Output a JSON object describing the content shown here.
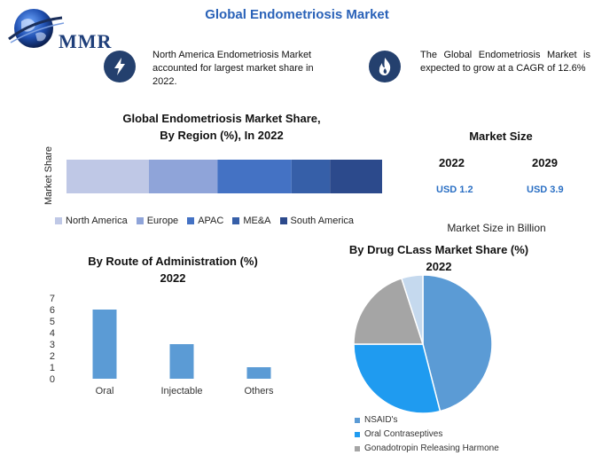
{
  "header": {
    "logo_text": "MMR",
    "title": "Global Endometriosis Market"
  },
  "info": [
    {
      "icon": "lightning-icon",
      "text": "North America Endometriosis Market accounted for largest market share in 2022."
    },
    {
      "icon": "flame-icon",
      "text": "The Global Endometriosis Market is expected to grow at a CAGR of 12.6%"
    }
  ],
  "market_size": {
    "title": "Market Size",
    "years": [
      "2022",
      "2029"
    ],
    "values": [
      "USD 1.2",
      "USD 3.9"
    ],
    "note": "Market Size in Billion"
  },
  "colors": {
    "title_blue": "#2a62b8",
    "icon_navy": "#24406e",
    "value_blue": "#2a6fc4"
  },
  "chart_data": [
    {
      "type": "bar",
      "orientation": "horizontal-stacked",
      "title_line1": "Global Endometriosis Market Share,",
      "title_line2": "By Region (%), In 2022",
      "ylabel": "Market Share",
      "series": [
        {
          "name": "North America",
          "value": 30,
          "color": "#bfc8e6"
        },
        {
          "name": "Europe",
          "value": 25,
          "color": "#8fa4d9"
        },
        {
          "name": "APAC",
          "value": 27,
          "color": "#4472c4"
        },
        {
          "name": "ME&A",
          "value": 14,
          "color": "#365fa8"
        },
        {
          "name": "South America",
          "value": 19,
          "color": "#2c4a8c"
        }
      ],
      "legend_position": "bottom"
    },
    {
      "type": "bar",
      "title_line1": "By Route of Administration (%)",
      "title_line2": "2022",
      "categories": [
        "Oral",
        "Injectable",
        "Others"
      ],
      "values": [
        6,
        3,
        1
      ],
      "yticks": [
        "0",
        "1",
        "2",
        "3",
        "4",
        "5",
        "6",
        "7"
      ],
      "ylim": [
        0,
        7
      ],
      "color": "#5b9bd5",
      "grid": false
    },
    {
      "type": "pie",
      "title_line1": "By Drug CLass Market Share (%)",
      "title_line2": "2022",
      "slices": [
        {
          "name": "NSAID's",
          "value": 46,
          "color": "#5b9bd5"
        },
        {
          "name": "Oral Contraseptives",
          "value": 29,
          "color": "#1f9bf0"
        },
        {
          "name": "Gonadotropin Releasing Harmone",
          "value": 20,
          "color": "#a5a5a5"
        },
        {
          "name": "",
          "value": 5,
          "color": "#c5d9ee"
        }
      ],
      "legend_position": "bottom-left"
    }
  ]
}
